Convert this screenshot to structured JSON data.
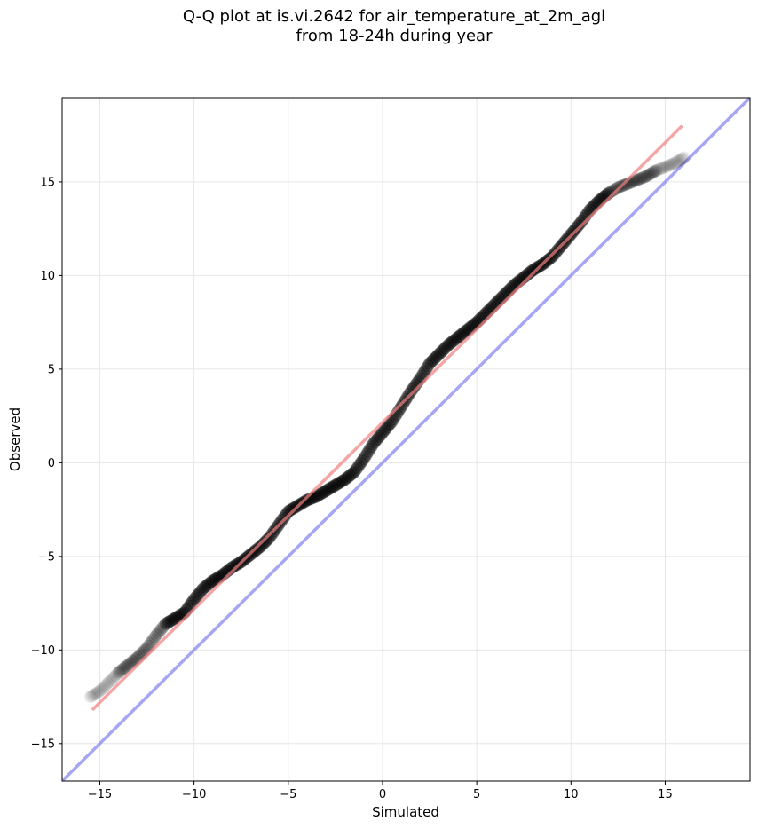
{
  "chart_data": {
    "type": "scatter",
    "title_line1": "Q-Q plot at is.vi.2642 for air_temperature_at_2m_agl",
    "title_line2": "from 18-24h during year",
    "xlabel": "Simulated",
    "ylabel": "Observed",
    "xlim": [
      -17,
      19.5
    ],
    "ylim": [
      -17,
      19.5
    ],
    "xticks": [
      -15,
      -10,
      -5,
      0,
      5,
      10,
      15
    ],
    "yticks": [
      -15,
      -10,
      -5,
      0,
      5,
      10,
      15
    ],
    "xtick_labels": [
      "−15",
      "−10",
      "−5",
      "0",
      "5",
      "10",
      "15"
    ],
    "ytick_labels": [
      "−15",
      "−10",
      "−5",
      "0",
      "5",
      "10",
      "15"
    ],
    "grid": true,
    "colors": {
      "points": "#000000",
      "fit_line": "#f08080",
      "identity_line": "#8080f0",
      "grid": "#e6e6e6"
    },
    "quantile_curve": [
      [
        -15.5,
        -12.5
      ],
      [
        -15.0,
        -12.2
      ],
      [
        -14.5,
        -11.7
      ],
      [
        -14.0,
        -11.2
      ],
      [
        -13.5,
        -10.8
      ],
      [
        -13.0,
        -10.4
      ],
      [
        -12.5,
        -9.9
      ],
      [
        -12.0,
        -9.2
      ],
      [
        -11.5,
        -8.6
      ],
      [
        -11.0,
        -8.3
      ],
      [
        -10.5,
        -8.0
      ],
      [
        -10.0,
        -7.3
      ],
      [
        -9.5,
        -6.7
      ],
      [
        -9.0,
        -6.3
      ],
      [
        -8.5,
        -6.0
      ],
      [
        -8.0,
        -5.6
      ],
      [
        -7.5,
        -5.3
      ],
      [
        -7.0,
        -4.9
      ],
      [
        -6.5,
        -4.5
      ],
      [
        -6.0,
        -4.0
      ],
      [
        -5.5,
        -3.3
      ],
      [
        -5.0,
        -2.6
      ],
      [
        -4.5,
        -2.3
      ],
      [
        -4.0,
        -2.0
      ],
      [
        -3.5,
        -1.8
      ],
      [
        -3.0,
        -1.5
      ],
      [
        -2.5,
        -1.2
      ],
      [
        -2.0,
        -0.9
      ],
      [
        -1.5,
        -0.5
      ],
      [
        -1.0,
        0.2
      ],
      [
        -0.5,
        1.0
      ],
      [
        0.0,
        1.6
      ],
      [
        0.5,
        2.2
      ],
      [
        1.0,
        3.0
      ],
      [
        1.5,
        3.8
      ],
      [
        2.0,
        4.5
      ],
      [
        2.5,
        5.3
      ],
      [
        3.0,
        5.8
      ],
      [
        3.5,
        6.3
      ],
      [
        4.0,
        6.7
      ],
      [
        4.5,
        7.1
      ],
      [
        5.0,
        7.5
      ],
      [
        5.5,
        8.0
      ],
      [
        6.0,
        8.5
      ],
      [
        6.5,
        9.0
      ],
      [
        7.0,
        9.5
      ],
      [
        7.5,
        9.9
      ],
      [
        8.0,
        10.3
      ],
      [
        8.5,
        10.6
      ],
      [
        9.0,
        11.0
      ],
      [
        9.5,
        11.6
      ],
      [
        10.0,
        12.2
      ],
      [
        10.5,
        12.8
      ],
      [
        11.0,
        13.5
      ],
      [
        11.5,
        14.0
      ],
      [
        12.0,
        14.4
      ],
      [
        12.5,
        14.7
      ],
      [
        13.0,
        14.9
      ],
      [
        13.5,
        15.1
      ],
      [
        14.0,
        15.3
      ],
      [
        14.5,
        15.6
      ],
      [
        15.0,
        15.8
      ],
      [
        15.5,
        16.0
      ],
      [
        16.0,
        16.3
      ]
    ],
    "fit_line": {
      "x": [
        -15.4,
        15.9
      ],
      "y": [
        -13.2,
        18.0
      ]
    },
    "identity_line": {
      "x": [
        -17,
        19.5
      ],
      "y": [
        -17,
        19.5
      ]
    }
  }
}
